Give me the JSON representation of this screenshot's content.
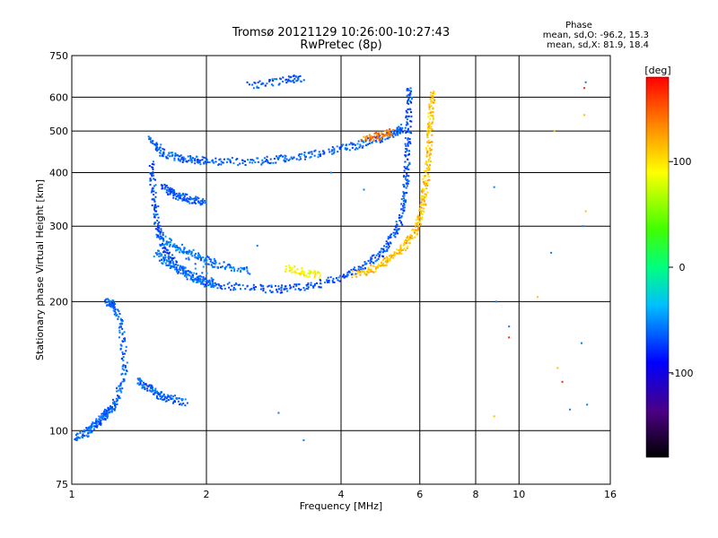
{
  "chart_data": {
    "type": "scatter",
    "title": "Tromsø 20121129 10:26:00-10:27:43",
    "subtitle": "RwPretec (8p)",
    "xlabel": "Frequency [MHz]",
    "ylabel": "Stationary phase Virtual Height [km]",
    "x_scale": "log",
    "y_scale": "log",
    "xlim": [
      1,
      16
    ],
    "ylim": [
      75,
      750
    ],
    "x_ticks": [
      1,
      2,
      4,
      6,
      8,
      10,
      16
    ],
    "x_gridlines": [
      2,
      4,
      6,
      8,
      10
    ],
    "y_ticks": [
      75,
      100,
      200,
      300,
      400,
      500,
      600,
      750
    ],
    "y_gridlines": [
      100,
      200,
      300,
      400,
      500,
      600
    ],
    "grid": true,
    "phase_info": {
      "title": "Phase",
      "line1": "mean, sd,O: -96.2, 15.3",
      "line2": "mean, sd,X:  81.9, 18.4"
    },
    "colorbar": {
      "label": "[deg]",
      "range": [
        -180,
        180
      ],
      "ticks": [
        100,
        0,
        -100
      ]
    },
    "series": [
      {
        "traces": [
          {
            "phase": -110,
            "points": [
              [
                1.5,
                480
              ],
              [
                1.55,
                460
              ],
              [
                1.6,
                445
              ],
              [
                1.7,
                435
              ],
              [
                1.8,
                430
              ],
              [
                1.9,
                428
              ],
              [
                2.0,
                426
              ],
              [
                2.2,
                425
              ],
              [
                2.5,
                425
              ],
              [
                2.8,
                428
              ],
              [
                3.0,
                432
              ],
              [
                3.3,
                438
              ],
              [
                3.6,
                445
              ],
              [
                4.0,
                455
              ],
              [
                4.3,
                462
              ],
              [
                4.6,
                472
              ],
              [
                4.9,
                480
              ],
              [
                5.2,
                490
              ],
              [
                5.4,
                500
              ],
              [
                5.5,
                510
              ]
            ]
          },
          {
            "phase": -115,
            "points": [
              [
                1.5,
                420
              ],
              [
                1.52,
                380
              ],
              [
                1.53,
                340
              ],
              [
                1.55,
                310
              ],
              [
                1.57,
                290
              ],
              [
                1.6,
                270
              ],
              [
                1.65,
                255
              ],
              [
                1.7,
                245
              ],
              [
                1.8,
                235
              ],
              [
                1.9,
                228
              ],
              [
                2.0,
                222
              ],
              [
                2.2,
                218
              ],
              [
                2.5,
                215
              ],
              [
                2.8,
                214
              ],
              [
                3.0,
                214
              ],
              [
                3.3,
                216
              ],
              [
                3.6,
                220
              ],
              [
                4.0,
                227
              ],
              [
                4.3,
                235
              ],
              [
                4.6,
                245
              ],
              [
                4.9,
                258
              ],
              [
                5.1,
                272
              ],
              [
                5.3,
                290
              ],
              [
                5.45,
                315
              ],
              [
                5.55,
                345
              ],
              [
                5.6,
                380
              ],
              [
                5.62,
                420
              ],
              [
                5.64,
                470
              ],
              [
                5.66,
                520
              ],
              [
                5.68,
                580
              ],
              [
                5.7,
                640
              ]
            ]
          },
          {
            "phase": -105,
            "points": [
              [
                1.55,
                260
              ],
              [
                1.6,
                250
              ],
              [
                1.7,
                240
              ],
              [
                1.8,
                232
              ],
              [
                1.9,
                226
              ],
              [
                2.0,
                221
              ],
              [
                2.1,
                219
              ],
              [
                1.6,
                280
              ],
              [
                1.7,
                270
              ],
              [
                1.8,
                262
              ],
              [
                1.9,
                256
              ],
              [
                2.0,
                250
              ],
              [
                2.1,
                245
              ],
              [
                2.3,
                240
              ],
              [
                2.5,
                236
              ]
            ]
          },
          {
            "phase": -112,
            "points": [
              [
                1.6,
                370
              ],
              [
                1.65,
                362
              ],
              [
                1.7,
                356
              ],
              [
                1.75,
                352
              ],
              [
                1.8,
                348
              ],
              [
                1.9,
                344
              ],
              [
                2.0,
                342
              ]
            ]
          },
          {
            "phase": 120,
            "points": [
              [
                4.3,
                232
              ],
              [
                4.6,
                236
              ],
              [
                4.9,
                243
              ],
              [
                5.1,
                250
              ],
              [
                5.3,
                258
              ],
              [
                5.5,
                268
              ],
              [
                5.7,
                280
              ],
              [
                5.9,
                295
              ],
              [
                6.0,
                312
              ],
              [
                6.1,
                335
              ],
              [
                6.15,
                360
              ],
              [
                6.2,
                385
              ],
              [
                6.25,
                420
              ],
              [
                6.3,
                460
              ],
              [
                6.33,
                500
              ],
              [
                6.35,
                540
              ],
              [
                6.38,
                580
              ],
              [
                6.4,
                620
              ]
            ]
          },
          {
            "phase": 100,
            "points": [
              [
                3.0,
                240
              ],
              [
                3.2,
                236
              ],
              [
                3.4,
                232
              ],
              [
                3.6,
                230
              ]
            ]
          },
          {
            "phase": 140,
            "points": [
              [
                4.5,
                480
              ],
              [
                4.8,
                485
              ],
              [
                5.0,
                492
              ],
              [
                5.2,
                498
              ]
            ]
          },
          {
            "phase": -110,
            "points": [
              [
                1.2,
                200
              ],
              [
                1.22,
                198
              ],
              [
                1.25,
                196
              ],
              [
                1.28,
                180
              ],
              [
                1.3,
                160
              ],
              [
                1.32,
                140
              ],
              [
                1.28,
                125
              ],
              [
                1.25,
                115
              ],
              [
                1.22,
                112
              ],
              [
                1.2,
                110
              ],
              [
                1.18,
                108
              ],
              [
                1.15,
                105
              ],
              [
                1.12,
                103
              ],
              [
                1.1,
                100
              ],
              [
                1.05,
                98
              ],
              [
                1.02,
                96
              ]
            ]
          },
          {
            "phase": -110,
            "points": [
              [
                1.4,
                130
              ],
              [
                1.45,
                127
              ],
              [
                1.5,
                125
              ],
              [
                1.55,
                122
              ],
              [
                1.6,
                120
              ],
              [
                1.7,
                118
              ],
              [
                1.8,
                116
              ]
            ]
          },
          {
            "phase": -115,
            "points": [
              [
                2.5,
                640
              ],
              [
                2.8,
                650
              ],
              [
                3.1,
                660
              ],
              [
                3.3,
                665
              ]
            ]
          }
        ],
        "scatter": [
          {
            "phase": -100,
            "points": [
              [
                2.6,
                270
              ],
              [
                2.9,
                110
              ],
              [
                3.3,
                95
              ],
              [
                3.8,
                400
              ],
              [
                4.5,
                365
              ],
              [
                8.8,
                370
              ],
              [
                11.8,
                260
              ],
              [
                13.9,
                300
              ],
              [
                14.1,
                650
              ],
              [
                8.9,
                200
              ],
              [
                9.5,
                175
              ],
              [
                14.2,
                115
              ],
              [
                13.0,
                112
              ],
              [
                13.8,
                160
              ]
            ]
          },
          {
            "phase": 120,
            "points": [
              [
                11.0,
                205
              ],
              [
                12.2,
                140
              ],
              [
                14.1,
                325
              ],
              [
                14.0,
                545
              ],
              [
                8.8,
                108
              ],
              [
                12.0,
                500
              ]
            ]
          },
          {
            "phase": 170,
            "points": [
              [
                9.5,
                165
              ],
              [
                12.5,
                130
              ],
              [
                14.0,
                630
              ]
            ]
          }
        ]
      }
    ]
  }
}
